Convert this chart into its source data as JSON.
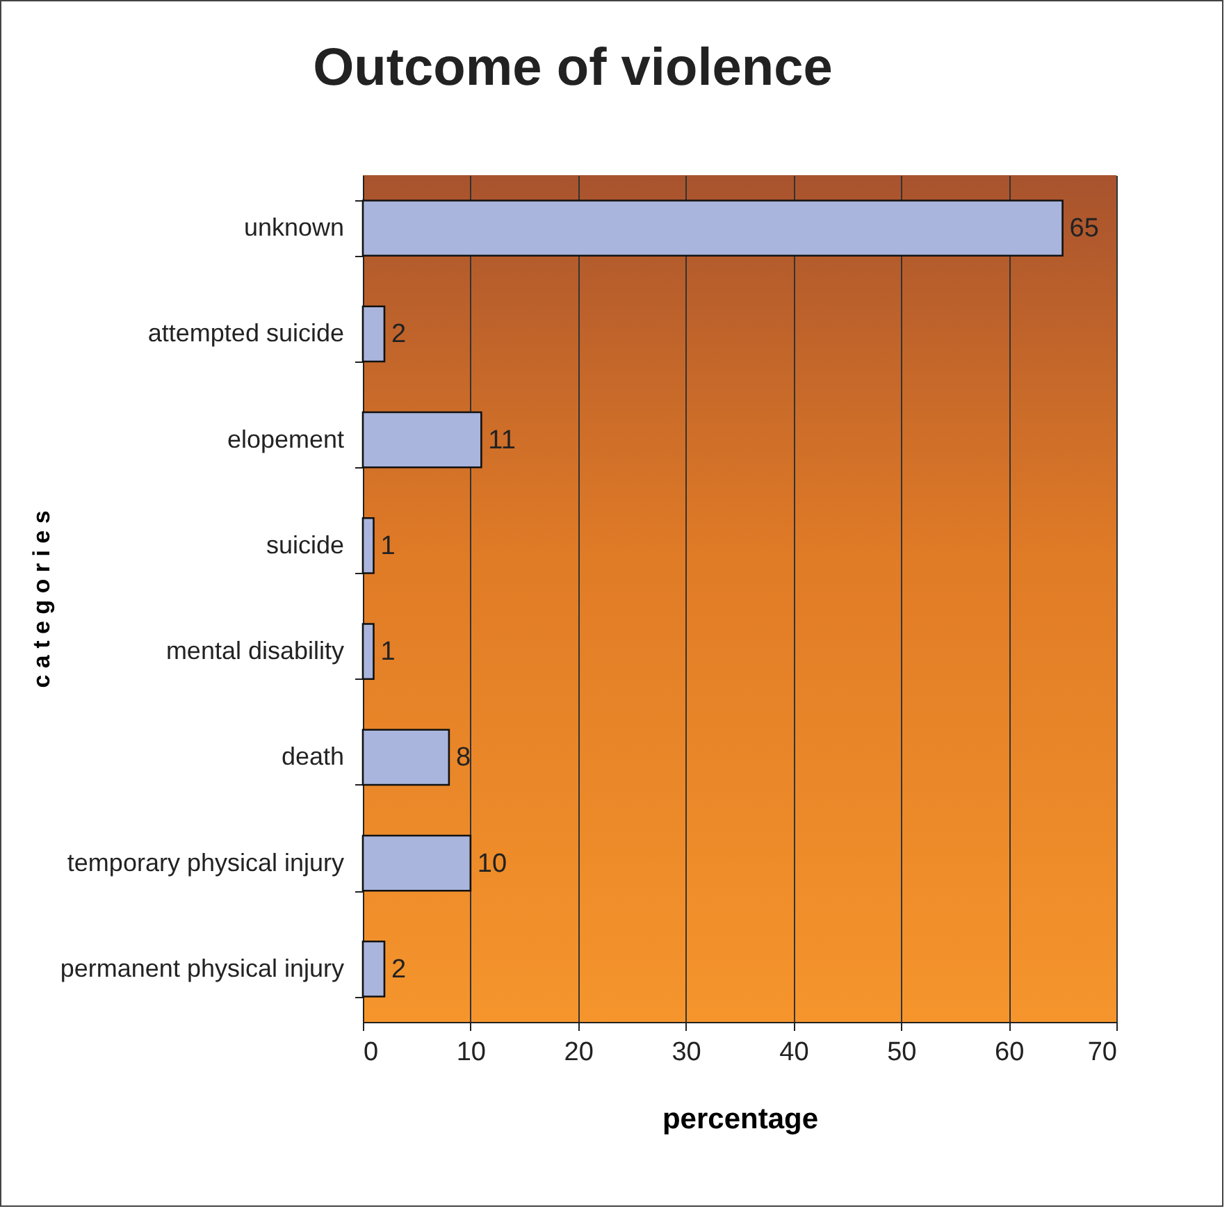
{
  "chart_data": {
    "type": "bar",
    "orientation": "horizontal",
    "title": "Outcome of violence",
    "xlabel": "percentage",
    "ylabel": "c a t e g o r i e s",
    "categories": [
      "unknown",
      "attempted suicide",
      "elopement",
      "suicide",
      "mental disability",
      "death",
      "temporary physical injury",
      "permanent physical injury"
    ],
    "values": [
      65,
      2,
      11,
      1,
      1,
      8,
      10,
      2
    ],
    "color": "#a9b5dc",
    "xlim": [
      0,
      70
    ],
    "xticks": [
      0,
      10,
      20,
      30,
      40,
      50,
      60,
      70
    ],
    "grid": "x",
    "data_labels": true
  }
}
